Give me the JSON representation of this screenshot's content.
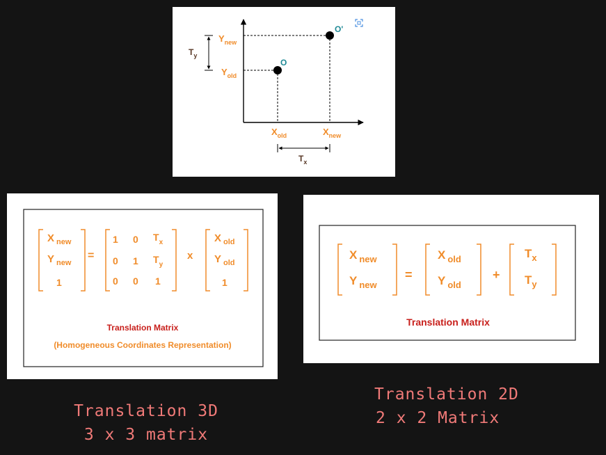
{
  "plot": {
    "y_new": {
      "base": "Y",
      "sub": "new"
    },
    "y_old": {
      "base": "Y",
      "sub": "old"
    },
    "x_old": {
      "base": "X",
      "sub": "old"
    },
    "x_new": {
      "base": "X",
      "sub": "new"
    },
    "ty": {
      "base": "T",
      "sub": "y"
    },
    "tx": {
      "base": "T",
      "sub": "x"
    },
    "point_old": "O",
    "point_new": "O'"
  },
  "matrix3d": {
    "lhs": [
      {
        "base": "X",
        "sub": "new"
      },
      {
        "base": "Y",
        "sub": "new"
      },
      {
        "base": "1",
        "sub": ""
      }
    ],
    "eq": "=",
    "rows": [
      [
        "1",
        "0",
        {
          "base": "T",
          "sub": "x"
        }
      ],
      [
        "0",
        "1",
        {
          "base": "T",
          "sub": "y"
        }
      ],
      [
        "0",
        "0",
        "1"
      ]
    ],
    "op": "x",
    "rhs": [
      {
        "base": "X",
        "sub": "old"
      },
      {
        "base": "Y",
        "sub": "old"
      },
      {
        "base": "1",
        "sub": ""
      }
    ],
    "title": "Translation Matrix",
    "subtitle": "(Homogeneous Coordinates Representation)"
  },
  "matrix2d": {
    "lhs": [
      {
        "base": "X",
        "sub": "new"
      },
      {
        "base": "Y",
        "sub": "new"
      }
    ],
    "eq": "=",
    "mid": [
      {
        "base": "X",
        "sub": "old"
      },
      {
        "base": "Y",
        "sub": "old"
      }
    ],
    "op": "+",
    "rhs": [
      {
        "base": "T",
        "sub": "x"
      },
      {
        "base": "T",
        "sub": "y"
      }
    ],
    "title": "Translation Matrix"
  },
  "captions": {
    "left_line1": "Translation 3D",
    "left_line2": "3 x 3 matrix",
    "right_line1": "Translation 2D",
    "right_line2": "2 x 2 Matrix"
  },
  "colors": {
    "background": "#141414",
    "orange": "#f08c2a",
    "caption": "#f07a78",
    "title_red": "#c8201c",
    "point_label": "#1f8a96"
  },
  "icons": {
    "corner": "scan-icon"
  }
}
